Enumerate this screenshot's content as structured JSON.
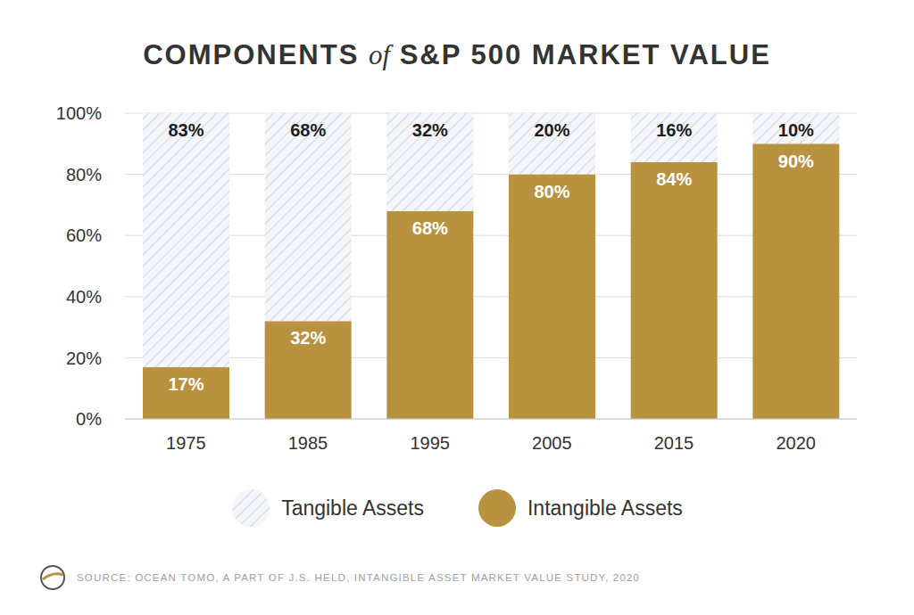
{
  "chart_data": {
    "type": "bar",
    "title": "COMPONENTS of S&P 500 MARKET VALUE",
    "annotation": "SOURCE:  OCEAN TOMO, A PART OF J.S. HELD, INTANGIBLE ASSET MARKET VALUE STUDY, 2020",
    "categories": [
      "1975",
      "1985",
      "1995",
      "2005",
      "2015",
      "2020"
    ],
    "series": [
      {
        "name": "Tangible Assets",
        "color": "#c9cdd6",
        "values": [
          83,
          68,
          32,
          20,
          16,
          10
        ],
        "value_labels": [
          "83%",
          "68%",
          "32%",
          "20%",
          "16%",
          "10%"
        ]
      },
      {
        "name": "Intangible Assets",
        "color": "#b8923f",
        "values": [
          17,
          32,
          68,
          80,
          84,
          90
        ],
        "value_labels": [
          "17%",
          "32%",
          "68%",
          "80%",
          "84%",
          "90%"
        ]
      }
    ],
    "ylim": [
      0,
      100
    ],
    "yticks": [
      {
        "value": 0,
        "label": "0%"
      },
      {
        "value": 20,
        "label": "20%"
      },
      {
        "value": 40,
        "label": "40%"
      },
      {
        "value": 60,
        "label": "60%"
      },
      {
        "value": 80,
        "label": "80%"
      },
      {
        "value": 100,
        "label": "100%"
      }
    ],
    "grid": true,
    "stacked": true,
    "data_labels": true,
    "legend": "bottom"
  }
}
